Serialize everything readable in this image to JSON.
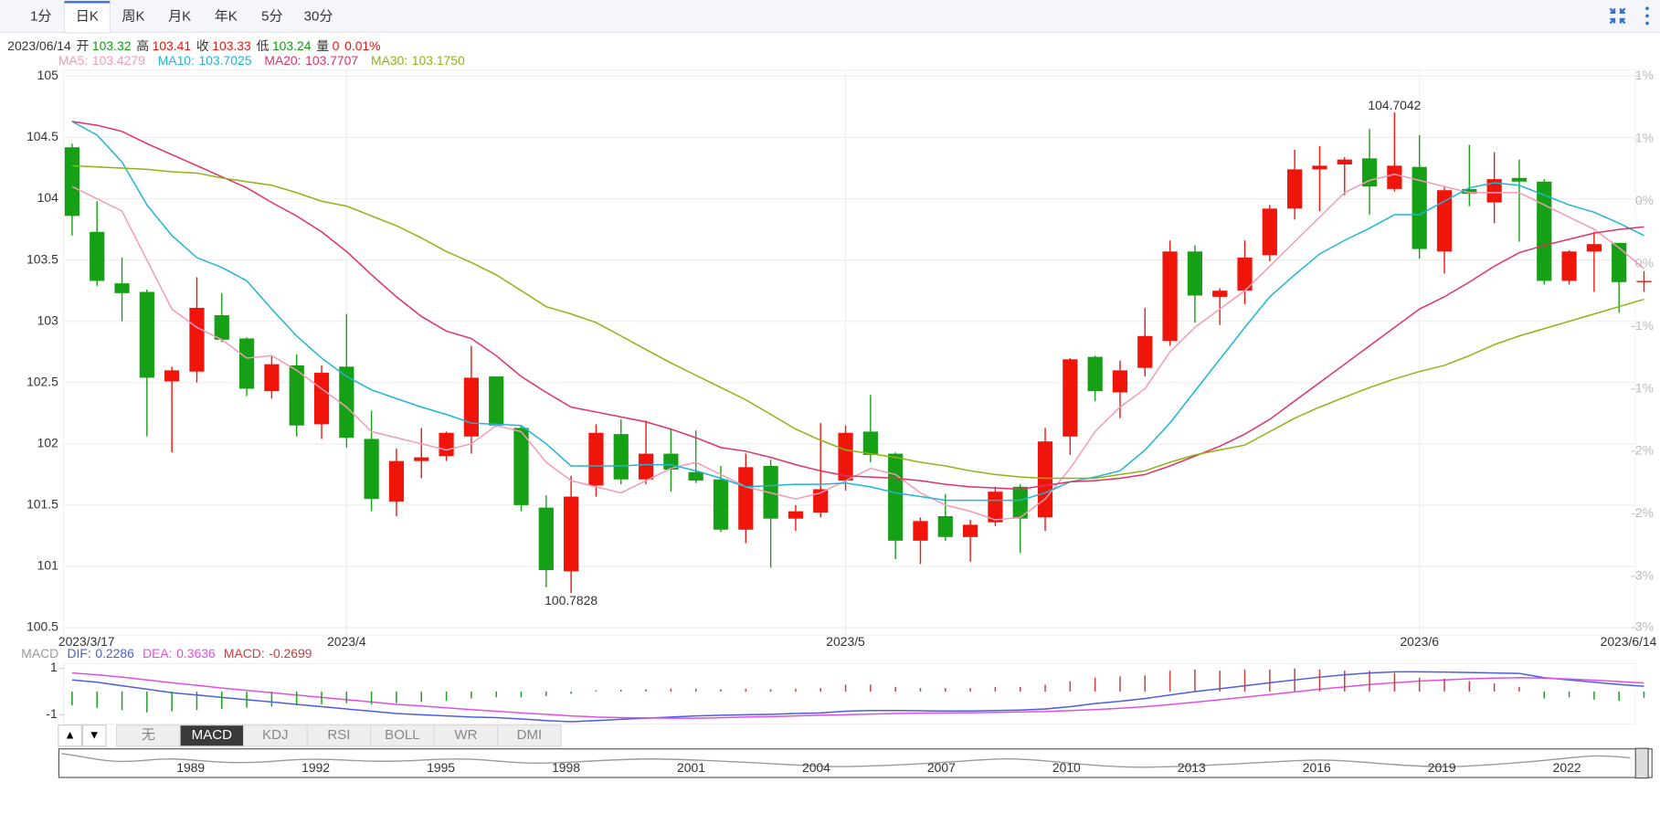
{
  "tabs": {
    "items": [
      "1分",
      "日K",
      "周K",
      "月K",
      "年K",
      "5分",
      "30分"
    ],
    "active": 1
  },
  "info": {
    "date": "2023/06/14",
    "items": [
      {
        "label": "开",
        "value": 103.32,
        "color": "#119911"
      },
      {
        "label": "高",
        "value": 103.41,
        "color": "#e8140c"
      },
      {
        "label": "收",
        "value": 103.33,
        "color": "#e8140c"
      },
      {
        "label": "低",
        "value": 103.24,
        "color": "#119911"
      },
      {
        "label": "量",
        "value": 0,
        "color": "#e8140c"
      }
    ],
    "change": "0.01%",
    "change_color": "#e8140c"
  },
  "chart_data": [
    {
      "type": "candlestick",
      "categories": [
        "2023/3/17",
        null,
        null,
        null,
        null,
        null,
        null,
        null,
        null,
        null,
        null,
        "2023/4",
        null,
        null,
        null,
        null,
        null,
        null,
        null,
        null,
        null,
        null,
        null,
        null,
        null,
        null,
        null,
        null,
        null,
        null,
        null,
        "2023/5",
        null,
        null,
        null,
        null,
        null,
        null,
        null,
        null,
        null,
        null,
        null,
        null,
        null,
        null,
        null,
        null,
        null,
        null,
        null,
        null,
        null,
        null,
        "2023/6",
        null,
        null,
        null,
        null,
        null,
        null,
        null,
        null,
        "2023/6/14"
      ],
      "open": [
        104.42,
        103.73,
        103.31,
        103.24,
        102.51,
        102.59,
        103.05,
        102.86,
        102.43,
        102.64,
        102.16,
        102.63,
        102.04,
        101.53,
        101.86,
        101.9,
        102.06,
        102.55,
        102.13,
        101.48,
        100.96,
        101.66,
        102.08,
        101.71,
        101.92,
        101.77,
        101.71,
        101.3,
        101.82,
        101.39,
        101.44,
        101.7,
        102.1,
        101.92,
        101.21,
        101.41,
        101.24,
        101.36,
        101.65,
        101.4,
        102.06,
        102.71,
        102.42,
        102.62,
        102.84,
        103.57,
        103.2,
        103.25,
        103.54,
        103.92,
        104.24,
        104.28,
        104.33,
        104.08,
        104.26,
        103.57,
        104.08,
        103.97,
        104.17,
        104.14,
        103.33,
        103.57,
        103.64,
        103.32
      ],
      "high": [
        104.45,
        103.98,
        103.52,
        103.26,
        102.63,
        103.36,
        103.23,
        102.87,
        102.72,
        102.73,
        102.64,
        103.06,
        102.27,
        101.96,
        102.13,
        102.1,
        102.8,
        102.55,
        102.15,
        101.58,
        101.74,
        102.16,
        102.2,
        102.19,
        102.12,
        102.11,
        101.82,
        101.92,
        101.87,
        101.5,
        102.17,
        102.15,
        102.4,
        101.93,
        101.4,
        101.59,
        101.38,
        101.65,
        101.67,
        102.13,
        102.7,
        102.72,
        102.68,
        103.11,
        103.66,
        103.62,
        103.27,
        103.66,
        103.95,
        104.4,
        104.43,
        104.34,
        104.57,
        104.7042,
        104.52,
        104.1,
        104.44,
        104.38,
        104.32,
        104.16,
        103.58,
        103.73,
        103.64,
        103.41
      ],
      "low": [
        103.7,
        103.29,
        103.0,
        102.06,
        101.93,
        102.5,
        102.83,
        102.39,
        102.37,
        102.06,
        102.04,
        101.97,
        101.45,
        101.41,
        101.72,
        101.86,
        101.92,
        102.14,
        101.45,
        100.83,
        100.7828,
        101.57,
        101.67,
        101.67,
        101.61,
        101.68,
        101.28,
        101.19,
        100.99,
        101.29,
        101.4,
        101.62,
        101.85,
        101.06,
        101.02,
        101.21,
        101.04,
        101.33,
        101.11,
        101.29,
        101.91,
        102.35,
        102.21,
        102.55,
        102.8,
        102.99,
        102.97,
        103.14,
        103.49,
        103.83,
        103.9,
        104.03,
        103.87,
        104.06,
        103.51,
        103.39,
        103.94,
        103.8,
        103.65,
        103.3,
        103.3,
        103.24,
        103.07,
        103.24
      ],
      "close": [
        103.86,
        103.33,
        103.23,
        102.54,
        102.6,
        103.11,
        102.85,
        102.45,
        102.65,
        102.15,
        102.58,
        102.05,
        101.55,
        101.86,
        101.89,
        102.09,
        102.54,
        102.15,
        101.5,
        100.97,
        101.57,
        102.09,
        101.71,
        101.92,
        101.79,
        101.7,
        101.3,
        101.81,
        101.39,
        101.45,
        101.63,
        102.09,
        101.91,
        101.21,
        101.37,
        101.24,
        101.34,
        101.61,
        101.39,
        102.02,
        102.69,
        102.43,
        102.6,
        102.88,
        103.57,
        103.21,
        103.25,
        103.52,
        103.92,
        104.24,
        104.27,
        104.32,
        104.1,
        104.27,
        103.59,
        104.07,
        104.04,
        104.16,
        104.14,
        103.33,
        103.57,
        103.63,
        103.32,
        103.33
      ],
      "up_color": "#f0150a",
      "down_color": "#16a016",
      "series": [
        {
          "name": "MA5:",
          "last": "103.4279",
          "color": "#f29ab8",
          "values": [
            104.1,
            104.0,
            103.9,
            103.5,
            103.1,
            102.95,
            102.85,
            102.7,
            102.72,
            102.6,
            102.45,
            102.3,
            102.1,
            102.05,
            102.0,
            101.95,
            102.0,
            102.15,
            102.1,
            101.85,
            101.7,
            101.65,
            101.6,
            101.7,
            101.8,
            101.85,
            101.75,
            101.65,
            101.6,
            101.55,
            101.6,
            101.7,
            101.8,
            101.75,
            101.6,
            101.5,
            101.45,
            101.38,
            101.4,
            101.55,
            101.8,
            102.1,
            102.3,
            102.45,
            102.75,
            102.95,
            103.1,
            103.25,
            103.45,
            103.65,
            103.85,
            104.05,
            104.15,
            104.2,
            104.15,
            104.1,
            104.05,
            104.05,
            104.05,
            103.95,
            103.85,
            103.75,
            103.6,
            103.43
          ]
        },
        {
          "name": "MA10:",
          "last": "103.7025",
          "color": "#1fb4d6",
          "values": [
            104.63,
            104.52,
            104.3,
            103.95,
            103.7,
            103.52,
            103.44,
            103.33,
            103.1,
            102.88,
            102.7,
            102.55,
            102.44,
            102.37,
            102.3,
            102.24,
            102.17,
            102.16,
            102.15,
            102.0,
            101.82,
            101.82,
            101.82,
            101.83,
            101.83,
            101.78,
            101.72,
            101.65,
            101.66,
            101.67,
            101.67,
            101.68,
            101.65,
            101.6,
            101.57,
            101.54,
            101.54,
            101.54,
            101.54,
            101.6,
            101.69,
            101.73,
            101.78,
            101.95,
            102.17,
            102.43,
            102.69,
            102.95,
            103.2,
            103.38,
            103.55,
            103.66,
            103.76,
            103.87,
            103.87,
            103.98,
            104.09,
            104.13,
            104.11,
            104.03,
            103.95,
            103.89,
            103.8,
            103.7
          ]
        },
        {
          "name": "MA20:",
          "last": "103.7707",
          "color": "#e23068",
          "values": [
            104.63,
            104.6,
            104.55,
            104.45,
            104.36,
            104.27,
            104.18,
            104.09,
            103.97,
            103.86,
            103.73,
            103.57,
            103.38,
            103.2,
            103.04,
            102.92,
            102.86,
            102.72,
            102.55,
            102.42,
            102.3,
            102.26,
            102.22,
            102.18,
            102.12,
            102.05,
            101.97,
            101.94,
            101.89,
            101.83,
            101.78,
            101.74,
            101.73,
            101.72,
            101.7,
            101.67,
            101.65,
            101.64,
            101.63,
            101.66,
            101.69,
            101.7,
            101.72,
            101.75,
            101.82,
            101.9,
            101.98,
            102.08,
            102.2,
            102.35,
            102.5,
            102.65,
            102.8,
            102.95,
            103.1,
            103.2,
            103.32,
            103.45,
            103.56,
            103.62,
            103.67,
            103.72,
            103.75,
            103.77
          ]
        },
        {
          "name": "MA30:",
          "last": "103.1750",
          "color": "#8db414",
          "values": [
            104.27,
            104.26,
            104.25,
            104.24,
            104.22,
            104.21,
            104.17,
            104.14,
            104.11,
            104.05,
            103.98,
            103.94,
            103.86,
            103.78,
            103.68,
            103.57,
            103.48,
            103.38,
            103.25,
            103.12,
            103.06,
            102.99,
            102.88,
            102.77,
            102.66,
            102.56,
            102.46,
            102.36,
            102.24,
            102.12,
            102.03,
            101.95,
            101.92,
            101.89,
            101.85,
            101.82,
            101.78,
            101.75,
            101.73,
            101.72,
            101.72,
            101.72,
            101.75,
            101.78,
            101.85,
            101.91,
            101.95,
            101.99,
            102.1,
            102.21,
            102.3,
            102.38,
            102.46,
            102.53,
            102.59,
            102.64,
            102.72,
            102.81,
            102.88,
            102.94,
            103.0,
            103.06,
            103.12,
            103.18
          ]
        }
      ],
      "ylim": [
        100.5,
        105
      ],
      "yticks": [
        100.5,
        101,
        101.5,
        102,
        102.5,
        103,
        103.5,
        104,
        104.5,
        105
      ],
      "y2lim": [
        -3.21,
        1.2
      ],
      "y2ticks": [
        {
          "value": 1.2,
          "label": "1%"
        },
        {
          "value": 0.7,
          "label": "1%"
        },
        {
          "value": 0.2,
          "label": "0%"
        },
        {
          "value": -0.3,
          "label": "0%"
        },
        {
          "value": -0.8,
          "label": "-1%"
        },
        {
          "value": -1.3,
          "label": "-1%"
        },
        {
          "value": -1.8,
          "label": "-2%"
        },
        {
          "value": -2.3,
          "label": "-2%"
        },
        {
          "value": -2.8,
          "label": "-3%"
        },
        {
          "value": -3.21,
          "label": "-3%"
        }
      ],
      "high_label": 104.7042,
      "low_label": 100.7828,
      "grid": true
    },
    {
      "type": "macd",
      "title": "MACD",
      "series": [
        {
          "name": "DIF:",
          "last": "0.2286",
          "color": "#4a5ee8",
          "values": [
            0.5,
            0.4,
            0.25,
            0.1,
            -0.05,
            -0.15,
            -0.25,
            -0.35,
            -0.45,
            -0.55,
            -0.65,
            -0.75,
            -0.85,
            -0.95,
            -1.0,
            -1.05,
            -1.1,
            -1.12,
            -1.18,
            -1.25,
            -1.3,
            -1.25,
            -1.2,
            -1.15,
            -1.1,
            -1.05,
            -1.02,
            -1.0,
            -0.98,
            -0.95,
            -0.92,
            -0.85,
            -0.82,
            -0.82,
            -0.83,
            -0.84,
            -0.84,
            -0.82,
            -0.8,
            -0.75,
            -0.65,
            -0.52,
            -0.42,
            -0.3,
            -0.15,
            0.0,
            0.12,
            0.25,
            0.38,
            0.5,
            0.62,
            0.72,
            0.8,
            0.85,
            0.85,
            0.84,
            0.82,
            0.8,
            0.78,
            0.6,
            0.5,
            0.4,
            0.3,
            0.2286
          ]
        },
        {
          "name": "DEA:",
          "last": "0.3636",
          "color": "#e050e0",
          "values": [
            0.8,
            0.72,
            0.62,
            0.5,
            0.38,
            0.27,
            0.15,
            0.05,
            -0.05,
            -0.15,
            -0.25,
            -0.35,
            -0.45,
            -0.55,
            -0.62,
            -0.7,
            -0.78,
            -0.85,
            -0.92,
            -0.98,
            -1.05,
            -1.1,
            -1.12,
            -1.14,
            -1.15,
            -1.15,
            -1.13,
            -1.1,
            -1.08,
            -1.05,
            -1.02,
            -1.0,
            -0.97,
            -0.95,
            -0.93,
            -0.92,
            -0.91,
            -0.9,
            -0.88,
            -0.86,
            -0.82,
            -0.78,
            -0.72,
            -0.65,
            -0.56,
            -0.46,
            -0.35,
            -0.24,
            -0.13,
            -0.02,
            0.1,
            0.2,
            0.3,
            0.38,
            0.45,
            0.5,
            0.55,
            0.58,
            0.6,
            0.58,
            0.54,
            0.49,
            0.43,
            0.3636
          ]
        },
        {
          "name": "MACD:",
          "last": "-0.2699",
          "color": "#c84040",
          "negative_color": "#20a020",
          "values": [
            -0.6,
            -0.7,
            -0.8,
            -0.9,
            -0.85,
            -0.8,
            -0.75,
            -0.7,
            -0.65,
            -0.6,
            -0.55,
            -0.5,
            -0.55,
            -0.5,
            -0.45,
            -0.4,
            -0.3,
            -0.25,
            -0.25,
            -0.2,
            -0.1,
            0.05,
            0.08,
            0.1,
            0.12,
            0.12,
            0.1,
            0.12,
            0.1,
            0.12,
            0.15,
            0.3,
            0.3,
            0.2,
            0.15,
            0.15,
            0.15,
            0.2,
            0.2,
            0.3,
            0.45,
            0.6,
            0.65,
            0.7,
            0.9,
            0.95,
            0.9,
            0.95,
            0.95,
            1.0,
            0.95,
            0.9,
            0.9,
            0.8,
            0.6,
            0.55,
            0.45,
            0.35,
            0.2,
            -0.3,
            -0.25,
            -0.35,
            -0.4,
            -0.2699
          ]
        }
      ],
      "ylim": [
        -1.4,
        1.2
      ],
      "yticks": [
        1,
        -1
      ]
    }
  ],
  "indicator_tabs": {
    "arrows": [
      "▲",
      "▼"
    ],
    "items": [
      "无",
      "MACD",
      "KDJ",
      "RSI",
      "BOLL",
      "WR",
      "DMI"
    ],
    "active": 1
  },
  "navigator": {
    "years": [
      "1989",
      "1992",
      "1995",
      "1998",
      "2001",
      "2004",
      "2007",
      "2010",
      "2013",
      "2016",
      "2019",
      "2022"
    ]
  }
}
